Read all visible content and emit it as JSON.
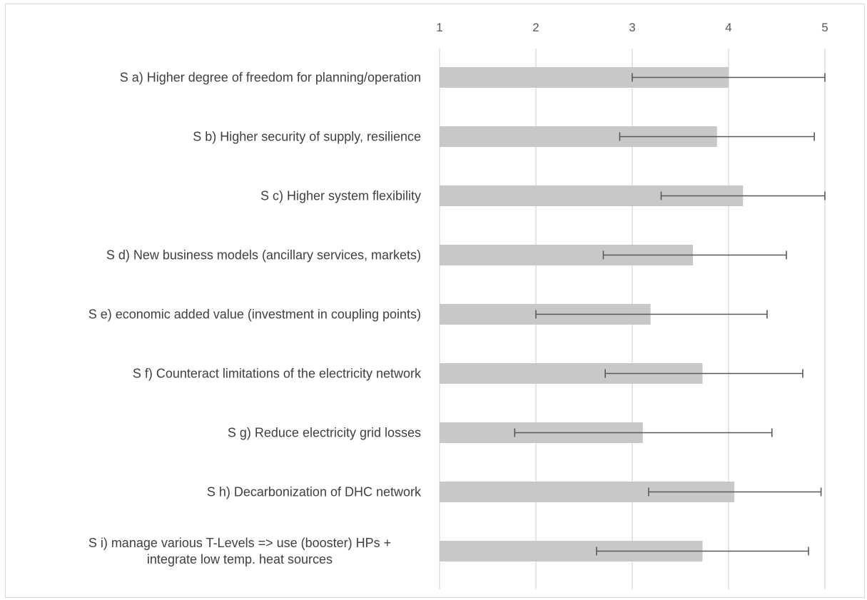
{
  "chart_data": {
    "type": "bar",
    "orientation": "horizontal",
    "title": "",
    "xlabel": "",
    "ylabel": "",
    "xlim": [
      1,
      5
    ],
    "x_ticks": [
      "1",
      "2",
      "3",
      "4",
      "5"
    ],
    "x_axis_position": "top",
    "grid": true,
    "legend": "none",
    "bar_color": "#c8c8c8",
    "error_bar_color": "#595959",
    "categories": [
      [
        "S a) Higher degree of freedom for planning/operation"
      ],
      [
        "S b) Higher security of supply, resilience"
      ],
      [
        "S c) Higher system flexibility"
      ],
      [
        "S d) New business models (ancillary services, markets)"
      ],
      [
        "S e) economic added value (investment in coupling points)"
      ],
      [
        "S f) Counteract limitations of the electricity network"
      ],
      [
        "S g) Reduce electricity grid losses"
      ],
      [
        "S h) Decarbonization of DHC network"
      ],
      [
        "S i) manage various T-Levels => use (booster) HPs +",
        "integrate low temp. heat sources"
      ]
    ],
    "values": [
      4.0,
      3.88,
      4.15,
      3.63,
      3.19,
      3.73,
      3.11,
      4.06,
      3.73
    ],
    "error_low": [
      3.0,
      2.87,
      3.3,
      2.7,
      2.0,
      2.72,
      1.78,
      3.17,
      2.63
    ],
    "error_high": [
      5.0,
      4.89,
      5.0,
      4.6,
      4.4,
      4.77,
      4.45,
      4.96,
      4.83
    ]
  }
}
